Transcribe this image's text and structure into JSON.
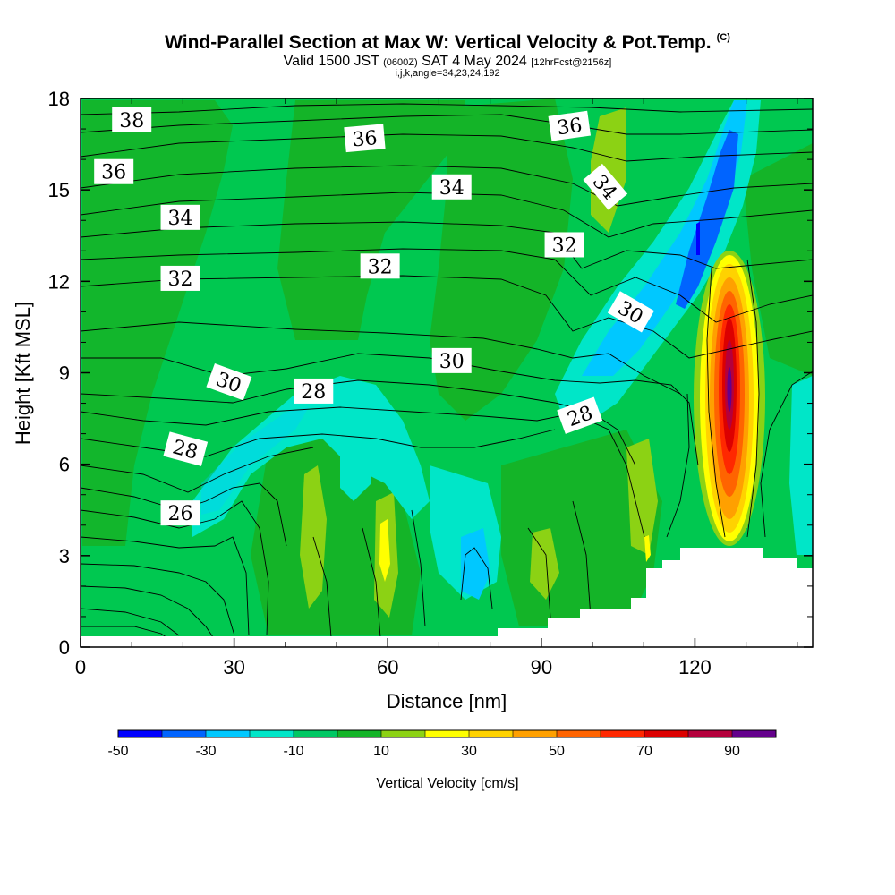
{
  "title": {
    "main": "Wind-Parallel Section at Max W: Vertical Velocity & Pot.Temp.",
    "copyright": "(C)",
    "valid_pre": "Valid 1500 JST",
    "valid_utc": "(0600Z)",
    "valid_post": "SAT 4 May 2024",
    "forecast": "[12hrFcst@2156z]",
    "params": "i,j,k,angle=34,23,24,192"
  },
  "chart_data": {
    "type": "heatmap",
    "xlabel": "Distance [nm]",
    "ylabel": "Height [Kft MSL]",
    "xlim": [
      0,
      143
    ],
    "ylim": [
      0,
      18
    ],
    "x_ticks": [
      "0",
      "30",
      "60",
      "90",
      "120"
    ],
    "y_ticks": [
      "0",
      "3",
      "6",
      "9",
      "12",
      "15",
      "18"
    ],
    "colorbar": {
      "label": "Vertical Velocity [cm/s]",
      "tick_labels": [
        "-50",
        "-30",
        "-10",
        "10",
        "30",
        "50",
        "70",
        "90"
      ],
      "colors": [
        "#0000ff",
        "#0064ff",
        "#00c8ff",
        "#00e6c8",
        "#00c864",
        "#14b428",
        "#8cd214",
        "#ffff00",
        "#ffd200",
        "#ffa000",
        "#ff6400",
        "#ff2800",
        "#dc0000",
        "#b4003c",
        "#64008c"
      ]
    },
    "background_color": "#00c850",
    "contour_labels": [
      {
        "text": "38",
        "x": 10,
        "y": 17.3,
        "angle": 0
      },
      {
        "text": "36",
        "x": 6.5,
        "y": 15.6,
        "angle": 0
      },
      {
        "text": "34",
        "x": 19.5,
        "y": 14.1,
        "angle": 0
      },
      {
        "text": "32",
        "x": 19.5,
        "y": 12.1,
        "angle": 0
      },
      {
        "text": "30",
        "x": 29,
        "y": 8.7,
        "angle": 20
      },
      {
        "text": "28",
        "x": 20.5,
        "y": 6.5,
        "angle": 15
      },
      {
        "text": "26",
        "x": 19.5,
        "y": 4.4,
        "angle": 0
      },
      {
        "text": "36",
        "x": 55.5,
        "y": 16.7,
        "angle": -5
      },
      {
        "text": "34",
        "x": 72.5,
        "y": 15.1,
        "angle": 0
      },
      {
        "text": "32",
        "x": 58.5,
        "y": 12.5,
        "angle": 0
      },
      {
        "text": "30",
        "x": 72.5,
        "y": 9.4,
        "angle": 0
      },
      {
        "text": "28",
        "x": 45.5,
        "y": 8.4,
        "angle": 0
      },
      {
        "text": "36",
        "x": 95.5,
        "y": 17.1,
        "angle": -8
      },
      {
        "text": "34",
        "x": 102.5,
        "y": 15.1,
        "angle": 50
      },
      {
        "text": "32",
        "x": 94.5,
        "y": 13.2,
        "angle": 0
      },
      {
        "text": "30",
        "x": 107.5,
        "y": 11.0,
        "angle": 30
      },
      {
        "text": "28",
        "x": 97.5,
        "y": 7.6,
        "angle": -20
      }
    ]
  }
}
